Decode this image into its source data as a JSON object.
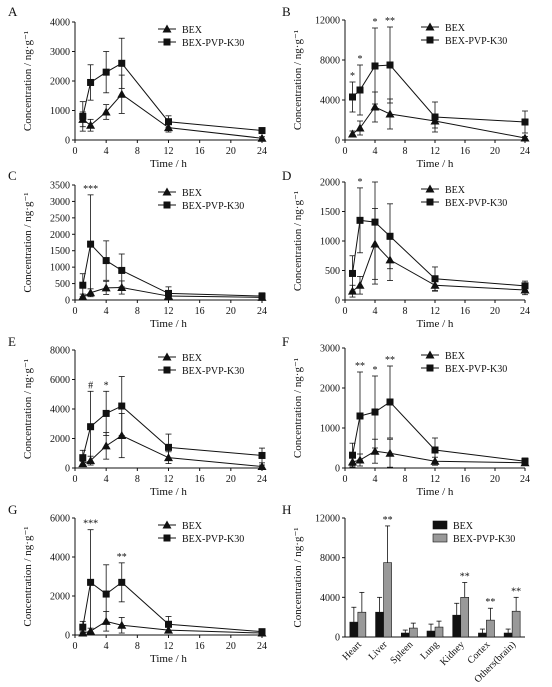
{
  "figure": {
    "panels": [
      "A",
      "B",
      "C",
      "D",
      "E",
      "F",
      "G",
      "H"
    ]
  },
  "chart_data": [
    {
      "panel": "A",
      "type": "line",
      "ylabel": "Concentration / ng·g⁻¹",
      "xlabel": "Time / h",
      "xlim": [
        0,
        24
      ],
      "xticks": [
        0,
        4,
        8,
        12,
        16,
        20,
        24
      ],
      "ylim": [
        0,
        4000
      ],
      "yticks": [
        0,
        1000,
        2000,
        3000,
        4000
      ],
      "legend": "top-right",
      "grid": false,
      "series": [
        {
          "name": "BEX",
          "marker": "triangle",
          "x": [
            1,
            2,
            4,
            6,
            12,
            24
          ],
          "y": [
            700,
            500,
            950,
            1550,
            420,
            60
          ],
          "err": [
            250,
            200,
            250,
            650,
            150,
            50
          ]
        },
        {
          "name": "BEX-PVP-K30",
          "marker": "square",
          "x": [
            1,
            2,
            4,
            6,
            12,
            24
          ],
          "y": [
            800,
            1950,
            2300,
            2600,
            620,
            320
          ],
          "err": [
            500,
            600,
            700,
            850,
            200,
            60
          ]
        }
      ],
      "annotations": []
    },
    {
      "panel": "B",
      "type": "line",
      "ylabel": "Concentration / ng·g⁻¹",
      "xlabel": "Time / h",
      "xlim": [
        0,
        24
      ],
      "xticks": [
        0,
        4,
        8,
        12,
        16,
        20,
        24
      ],
      "ylim": [
        0,
        12000
      ],
      "yticks": [
        0,
        4000,
        8000,
        12000
      ],
      "legend": "top-right",
      "grid": false,
      "series": [
        {
          "name": "BEX",
          "marker": "triangle",
          "x": [
            1,
            2,
            4,
            6,
            12,
            24
          ],
          "y": [
            600,
            1200,
            3300,
            2600,
            1900,
            200
          ],
          "err": [
            300,
            700,
            1500,
            1500,
            700,
            150
          ]
        },
        {
          "name": "BEX-PVP-K30",
          "marker": "square",
          "x": [
            1,
            2,
            4,
            6,
            12,
            24
          ],
          "y": [
            4300,
            5000,
            7400,
            7500,
            2300,
            1800
          ],
          "err": [
            1500,
            2500,
            3800,
            3800,
            1500,
            1100
          ]
        }
      ],
      "annotations": [
        {
          "x": 1,
          "text": "*"
        },
        {
          "x": 2,
          "text": "*"
        },
        {
          "x": 4,
          "text": "*"
        },
        {
          "x": 6,
          "text": "**"
        }
      ]
    },
    {
      "panel": "C",
      "type": "line",
      "ylabel": "Concentration / ng·g⁻¹",
      "xlabel": "Time / h",
      "xlim": [
        0,
        24
      ],
      "xticks": [
        0,
        4,
        8,
        12,
        16,
        20,
        24
      ],
      "ylim": [
        0,
        3500
      ],
      "yticks": [
        0,
        500,
        1000,
        1500,
        2000,
        2500,
        3000,
        3500
      ],
      "legend": "top-right",
      "grid": false,
      "series": [
        {
          "name": "BEX",
          "marker": "triangle",
          "x": [
            1,
            2,
            4,
            6,
            12,
            24
          ],
          "y": [
            100,
            220,
            370,
            380,
            120,
            80
          ],
          "err": [
            80,
            120,
            200,
            200,
            60,
            40
          ]
        },
        {
          "name": "BEX-PVP-K30",
          "marker": "square",
          "x": [
            1,
            2,
            4,
            6,
            12,
            24
          ],
          "y": [
            450,
            1700,
            1200,
            900,
            200,
            120
          ],
          "err": [
            350,
            1500,
            600,
            500,
            200,
            100
          ]
        }
      ],
      "annotations": [
        {
          "x": 2,
          "text": "***"
        }
      ]
    },
    {
      "panel": "D",
      "type": "line",
      "ylabel": "Concentration / ng·g⁻¹",
      "xlabel": "Time / h",
      "xlim": [
        0,
        24
      ],
      "xticks": [
        0,
        4,
        8,
        12,
        16,
        20,
        24
      ],
      "ylim": [
        0,
        2000
      ],
      "yticks": [
        0,
        500,
        1000,
        1500,
        2000
      ],
      "legend": "top-right",
      "grid": false,
      "series": [
        {
          "name": "BEX",
          "marker": "triangle",
          "x": [
            1,
            2,
            4,
            6,
            12,
            24
          ],
          "y": [
            150,
            250,
            950,
            680,
            250,
            170
          ],
          "err": [
            100,
            150,
            600,
            350,
            100,
            80
          ]
        },
        {
          "name": "BEX-PVP-K30",
          "marker": "square",
          "x": [
            1,
            2,
            4,
            6,
            12,
            24
          ],
          "y": [
            450,
            1350,
            1320,
            1080,
            360,
            240
          ],
          "err": [
            300,
            550,
            1050,
            550,
            200,
            80
          ]
        }
      ],
      "annotations": [
        {
          "x": 2,
          "text": "*"
        }
      ]
    },
    {
      "panel": "E",
      "type": "line",
      "ylabel": "Concentration / ng·g⁻¹",
      "xlabel": "Time / h",
      "xlim": [
        0,
        24
      ],
      "xticks": [
        0,
        4,
        8,
        12,
        16,
        20,
        24
      ],
      "ylim": [
        0,
        8000
      ],
      "yticks": [
        0,
        2000,
        4000,
        6000,
        8000
      ],
      "legend": "top-right",
      "grid": false,
      "series": [
        {
          "name": "BEX",
          "marker": "triangle",
          "x": [
            1,
            2,
            4,
            6,
            12,
            24
          ],
          "y": [
            300,
            500,
            1500,
            2200,
            700,
            100
          ],
          "err": [
            150,
            300,
            900,
            1500,
            400,
            100
          ]
        },
        {
          "name": "BEX-PVP-K30",
          "marker": "square",
          "x": [
            1,
            2,
            4,
            6,
            12,
            24
          ],
          "y": [
            700,
            2800,
            3700,
            4200,
            1400,
            850
          ],
          "err": [
            500,
            2400,
            1500,
            2000,
            900,
            500
          ]
        }
      ],
      "annotations": [
        {
          "x": 2,
          "text": "#"
        },
        {
          "x": 4,
          "text": "*"
        }
      ]
    },
    {
      "panel": "F",
      "type": "line",
      "ylabel": "Concentration / ng·g⁻¹",
      "xlabel": "Time / h",
      "xlim": [
        0,
        24
      ],
      "xticks": [
        0,
        4,
        8,
        12,
        16,
        20,
        24
      ],
      "ylim": [
        0,
        3000
      ],
      "yticks": [
        0,
        1000,
        2000,
        3000
      ],
      "legend": "top-right",
      "grid": false,
      "series": [
        {
          "name": "BEX",
          "marker": "triangle",
          "x": [
            1,
            2,
            4,
            6,
            12,
            24
          ],
          "y": [
            150,
            200,
            420,
            370,
            170,
            130
          ],
          "err": [
            100,
            150,
            300,
            350,
            100,
            60
          ]
        },
        {
          "name": "BEX-PVP-K30",
          "marker": "square",
          "x": [
            1,
            2,
            4,
            6,
            12,
            24
          ],
          "y": [
            320,
            1300,
            1400,
            1650,
            450,
            170
          ],
          "err": [
            300,
            1100,
            900,
            900,
            300,
            80
          ]
        }
      ],
      "annotations": [
        {
          "x": 2,
          "text": "**"
        },
        {
          "x": 4,
          "text": "*"
        },
        {
          "x": 6,
          "text": "**"
        }
      ]
    },
    {
      "panel": "G",
      "type": "line",
      "ylabel": "Concentration / ng·g⁻¹",
      "xlabel": "Time / h",
      "xlim": [
        0,
        24
      ],
      "xticks": [
        0,
        4,
        8,
        12,
        16,
        20,
        24
      ],
      "ylim": [
        0,
        6000
      ],
      "yticks": [
        0,
        2000,
        4000,
        6000
      ],
      "legend": "top-right",
      "grid": false,
      "series": [
        {
          "name": "BEX",
          "marker": "triangle",
          "x": [
            1,
            2,
            4,
            6,
            12,
            24
          ],
          "y": [
            100,
            200,
            700,
            500,
            250,
            100
          ],
          "err": [
            60,
            150,
            500,
            400,
            150,
            60
          ]
        },
        {
          "name": "BEX-PVP-K30",
          "marker": "square",
          "x": [
            1,
            2,
            4,
            6,
            12,
            24
          ],
          "y": [
            400,
            2700,
            2100,
            2700,
            550,
            170
          ],
          "err": [
            300,
            2700,
            1500,
            1000,
            400,
            100
          ]
        }
      ],
      "annotations": [
        {
          "x": 2,
          "text": "***"
        },
        {
          "x": 6,
          "text": "**"
        }
      ]
    },
    {
      "panel": "H",
      "type": "bar",
      "ylabel": "Concentration / ng·g⁻¹",
      "xlabel": "",
      "categories": [
        "Heart",
        "Liver",
        "Spleen",
        "Lung",
        "Kidney",
        "Cortex",
        "Others(brain)"
      ],
      "ylim": [
        0,
        12000
      ],
      "yticks": [
        0,
        4000,
        8000,
        12000
      ],
      "legend": "top-right",
      "grid": false,
      "series": [
        {
          "name": "BEX",
          "color": "#111111",
          "values": [
            1500,
            2500,
            400,
            600,
            2200,
            400,
            400
          ],
          "err": [
            1500,
            1500,
            300,
            700,
            1200,
            400,
            400
          ]
        },
        {
          "name": "BEX-PVP-K30",
          "color": "#999999",
          "values": [
            2500,
            7500,
            900,
            1000,
            4000,
            1700,
            2600
          ],
          "err": [
            2000,
            3700,
            500,
            600,
            1500,
            1200,
            1400
          ]
        }
      ],
      "annotations": [
        {
          "category": "Liver",
          "text": "**"
        },
        {
          "category": "Kidney",
          "text": "**"
        },
        {
          "category": "Cortex",
          "text": "**"
        },
        {
          "category": "Others(brain)",
          "text": "**"
        }
      ]
    }
  ]
}
